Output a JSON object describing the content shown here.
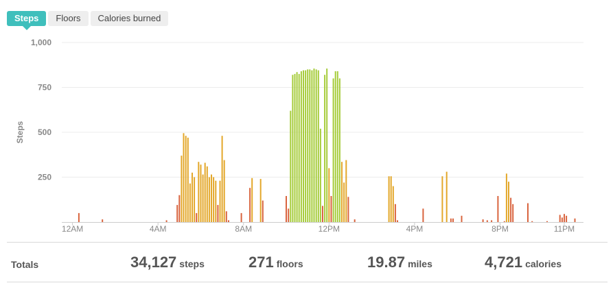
{
  "tabs": [
    {
      "label": "Steps",
      "active": true
    },
    {
      "label": "Floors",
      "active": false
    },
    {
      "label": "Calories burned",
      "active": false
    }
  ],
  "colors": {
    "accent": "#3fbfbc",
    "bar_low": "#d9643e",
    "bar_mid": "#e3a72a",
    "bar_high": "#a6cc3b",
    "axis_text": "#888888",
    "grid": "#ececec"
  },
  "chart_data": {
    "type": "bar",
    "title": "",
    "xlabel": "",
    "ylabel": "Steps",
    "ylim": [
      0,
      1000
    ],
    "yticks": [
      250,
      500,
      750,
      1000
    ],
    "ytick_labels": [
      "250",
      "500",
      "750",
      "1,000"
    ],
    "xlim": [
      -0.5,
      23.9
    ],
    "xticks": [
      0,
      4,
      8,
      12,
      16,
      20,
      23
    ],
    "xtick_labels": [
      "12AM",
      "4AM",
      "8AM",
      "12PM",
      "4PM",
      "8PM",
      "11PM"
    ],
    "grid": true,
    "bars": {
      "x": [
        0.3,
        1.4,
        4.4,
        4.9,
        5.0,
        5.1,
        5.2,
        5.3,
        5.4,
        5.5,
        5.6,
        5.7,
        5.8,
        5.9,
        6.0,
        6.1,
        6.2,
        6.3,
        6.4,
        6.5,
        6.6,
        6.7,
        6.8,
        6.9,
        7.0,
        7.1,
        7.2,
        7.3,
        7.9,
        8.3,
        8.4,
        8.8,
        8.9,
        10.0,
        10.1,
        10.2,
        10.3,
        10.4,
        10.5,
        10.6,
        10.7,
        10.8,
        10.9,
        11.0,
        11.1,
        11.2,
        11.3,
        11.4,
        11.5,
        11.6,
        11.7,
        11.8,
        11.9,
        12.0,
        12.1,
        12.2,
        12.3,
        12.4,
        12.5,
        12.6,
        12.7,
        12.8,
        12.9,
        13.2,
        14.8,
        14.9,
        15.0,
        15.1,
        15.2,
        16.4,
        17.3,
        17.5,
        17.7,
        17.8,
        18.2,
        19.2,
        19.4,
        19.6,
        19.9,
        20.2,
        20.3,
        20.4,
        20.5,
        20.6,
        21.3,
        21.5,
        22.2,
        22.8,
        22.9,
        23.0,
        23.1,
        23.5
      ],
      "values": [
        50,
        15,
        10,
        95,
        150,
        370,
        495,
        480,
        470,
        215,
        275,
        250,
        50,
        335,
        320,
        265,
        330,
        310,
        250,
        265,
        250,
        230,
        95,
        230,
        480,
        345,
        60,
        10,
        50,
        190,
        245,
        240,
        120,
        145,
        75,
        620,
        820,
        825,
        835,
        825,
        840,
        845,
        845,
        850,
        850,
        845,
        855,
        850,
        845,
        520,
        90,
        820,
        855,
        300,
        145,
        800,
        840,
        840,
        800,
        335,
        220,
        345,
        140,
        15,
        255,
        255,
        200,
        100,
        10,
        75,
        255,
        280,
        20,
        20,
        35,
        15,
        10,
        10,
        145,
        5,
        270,
        225,
        135,
        100,
        105,
        5,
        5,
        40,
        25,
        45,
        35,
        20
      ]
    }
  },
  "totals": {
    "label": "Totals",
    "steps": {
      "value": "34,127",
      "unit": "steps"
    },
    "floors": {
      "value": "271",
      "unit": "floors"
    },
    "miles": {
      "value": "19.87",
      "unit": "miles"
    },
    "calories": {
      "value": "4,721",
      "unit": "calories"
    }
  }
}
